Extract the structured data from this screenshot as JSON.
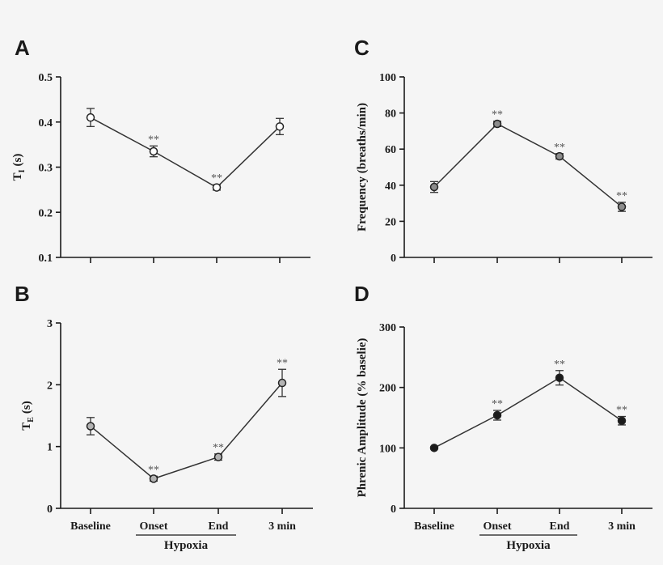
{
  "chart_data": [
    {
      "id": "A",
      "type": "line",
      "panel_label": "A",
      "ylabel_main": "T",
      "ylabel_sub": "I",
      "ylabel_unit": "(s)",
      "categories": [
        "Baseline",
        "Onset",
        "End",
        "3 min"
      ],
      "values": [
        0.41,
        0.335,
        0.255,
        0.39
      ],
      "errors": [
        0.02,
        0.012,
        0.006,
        0.018
      ],
      "significance": [
        "",
        "**",
        "**",
        ""
      ],
      "ylim": [
        0.1,
        0.5
      ],
      "yticks": [
        0.1,
        0.2,
        0.3,
        0.4,
        0.5
      ],
      "ytick_labels": [
        "0.1",
        "0.2",
        "0.3",
        "0.4",
        "0.5"
      ],
      "marker_fill": "#ffffff",
      "show_xlabels": false
    },
    {
      "id": "B",
      "type": "line",
      "panel_label": "B",
      "ylabel_main": "T",
      "ylabel_sub": "E",
      "ylabel_unit": "(s)",
      "categories": [
        "Baseline",
        "Onset",
        "End",
        "3 min"
      ],
      "values": [
        1.33,
        0.48,
        0.83,
        2.03
      ],
      "errors": [
        0.14,
        0.04,
        0.05,
        0.22
      ],
      "significance": [
        "",
        "**",
        "**",
        "**"
      ],
      "ylim": [
        0,
        3
      ],
      "yticks": [
        0,
        1,
        2,
        3
      ],
      "ytick_labels": [
        "0",
        "1",
        "2",
        "3"
      ],
      "marker_fill": "#b3b3b3",
      "show_xlabels": true
    },
    {
      "id": "C",
      "type": "line",
      "panel_label": "C",
      "ylabel": "Frequency (breaths/min)",
      "categories": [
        "Baseline",
        "Onset",
        "End",
        "3 min"
      ],
      "values": [
        39,
        74,
        56,
        28
      ],
      "errors": [
        3,
        1.5,
        1.5,
        2.5
      ],
      "significance": [
        "",
        "**",
        "**",
        "**"
      ],
      "ylim": [
        0,
        100
      ],
      "yticks": [
        0,
        20,
        40,
        60,
        80,
        100
      ],
      "ytick_labels": [
        "0",
        "20",
        "40",
        "60",
        "80",
        "100"
      ],
      "marker_fill": "#8c8c8c",
      "show_xlabels": false
    },
    {
      "id": "D",
      "type": "line",
      "panel_label": "D",
      "ylabel": "Phrenic Amplitude (% baselie)",
      "categories": [
        "Baseline",
        "Onset",
        "End",
        "3 min"
      ],
      "values": [
        100,
        154,
        216,
        145
      ],
      "errors": [
        0,
        8,
        12,
        7
      ],
      "significance": [
        "",
        "**",
        "**",
        "**"
      ],
      "ylim": [
        0,
        300
      ],
      "yticks": [
        0,
        100,
        200,
        300
      ],
      "ytick_labels": [
        "0",
        "100",
        "200",
        "300"
      ],
      "marker_fill": "#1a1a1a",
      "show_xlabels": true
    }
  ],
  "bracket_label": "Hypoxia",
  "colors": {
    "axis": "#1a1a1a",
    "line": "#333333",
    "background": "#f5f5f5"
  }
}
